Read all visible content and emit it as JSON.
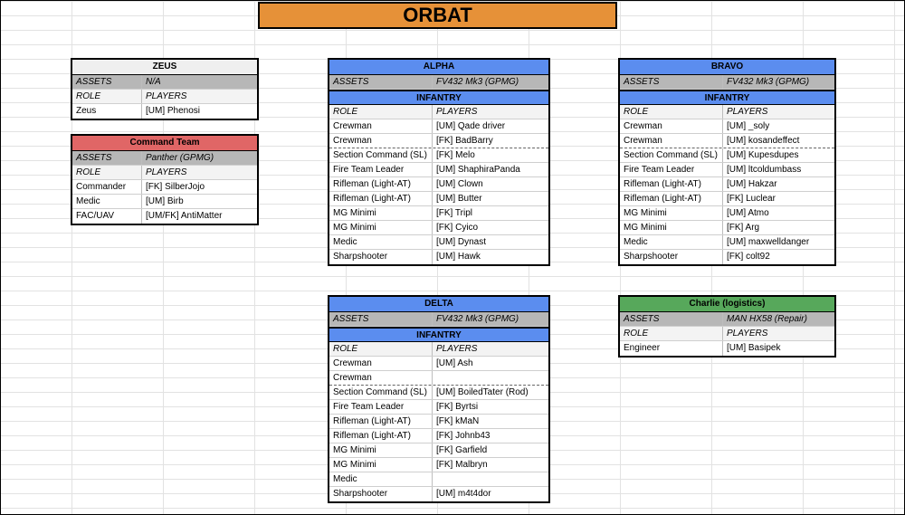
{
  "title": "ORBAT",
  "labels": {
    "assets": "ASSETS",
    "role": "ROLE",
    "players": "PLAYERS",
    "infantry": "INFANTRY"
  },
  "zeus": {
    "name": "ZEUS",
    "assets": "N/A",
    "rows": [
      {
        "role": "Zeus",
        "player": "[UM]  Phenosi"
      }
    ]
  },
  "command": {
    "name": "Command Team",
    "assets": "Panther (GPMG)",
    "rows": [
      {
        "role": "Commander",
        "player": "[FK] SilberJojo"
      },
      {
        "role": "Medic",
        "player": "[UM] Birb"
      },
      {
        "role": "FAC/UAV",
        "player": "[UM/FK] AntiMatter"
      }
    ]
  },
  "alpha": {
    "name": "ALPHA",
    "assets": "FV432 Mk3 (GPMG)",
    "rows": [
      {
        "role": "Crewman",
        "player": "[UM] Qade driver"
      },
      {
        "role": "Crewman",
        "player": "[FK] BadBarry"
      },
      {
        "role": "Section Command (SL)",
        "player": "[FK] Melo"
      },
      {
        "role": "Fire Team Leader",
        "player": "[UM] ShaphiraPanda"
      },
      {
        "role": "Rifleman (Light-AT)",
        "player": "[UM]  Clown"
      },
      {
        "role": "Rifleman (Light-AT)",
        "player": "[UM]  Butter"
      },
      {
        "role": "MG Minimi",
        "player": "[FK] Tripl"
      },
      {
        "role": "MG Minimi",
        "player": "[FK] Cyico"
      },
      {
        "role": "Medic",
        "player": "[UM] Dynast"
      },
      {
        "role": "Sharpshooter",
        "player": "[UM] Hawk"
      }
    ]
  },
  "bravo": {
    "name": "BRAVO",
    "assets": "FV432 Mk3 (GPMG)",
    "rows": [
      {
        "role": "Crewman",
        "player": "[UM] _soly"
      },
      {
        "role": "Crewman",
        "player": "[UM] kosandeffect"
      },
      {
        "role": "Section Command (SL)",
        "player": "[UM] Kupesdupes"
      },
      {
        "role": "Fire Team Leader",
        "player": "[UM] ltcoldumbass"
      },
      {
        "role": "Rifleman (Light-AT)",
        "player": "[UM] Hakzar"
      },
      {
        "role": "Rifleman (Light-AT)",
        "player": "[FK] Luclear"
      },
      {
        "role": "MG Minimi",
        "player": "[UM] Atmo"
      },
      {
        "role": "MG Minimi",
        "player": "[FK] Arg"
      },
      {
        "role": "Medic",
        "player": "[UM] maxwelldanger"
      },
      {
        "role": "Sharpshooter",
        "player": "[FK] colt92"
      }
    ]
  },
  "delta": {
    "name": "DELTA",
    "assets": "FV432 Mk3 (GPMG)",
    "rows": [
      {
        "role": "Crewman",
        "player": "[UM] Ash"
      },
      {
        "role": "Crewman",
        "player": ""
      },
      {
        "role": "Section Command (SL)",
        "player": "[UM] BoiledTater (Rod)"
      },
      {
        "role": "Fire Team Leader",
        "player": "[FK] Byrtsi"
      },
      {
        "role": "Rifleman (Light-AT)",
        "player": "[FK] kMaN"
      },
      {
        "role": "Rifleman (Light-AT)",
        "player": "[FK] Johnb43"
      },
      {
        "role": "MG Minimi",
        "player": "[FK] Garfield"
      },
      {
        "role": "MG Minimi",
        "player": "[FK] Malbryn"
      },
      {
        "role": "Medic",
        "player": ""
      },
      {
        "role": "Sharpshooter",
        "player": "[UM] m4t4dor"
      }
    ]
  },
  "charlie": {
    "name": "Charlie (logistics)",
    "assets": "MAN HX58 (Repair)",
    "rows": [
      {
        "role": "Engineer",
        "player": "[UM] Basipek"
      }
    ]
  }
}
